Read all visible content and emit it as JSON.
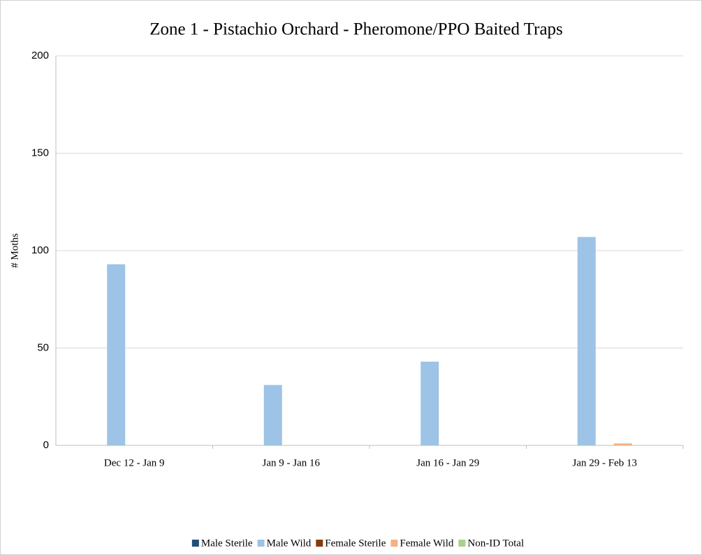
{
  "chart_data": {
    "type": "bar",
    "title": "Zone 1 - Pistachio Orchard - Pheromone/PPO Baited Traps",
    "y_label": "# Moths",
    "categories": [
      "Dec 12 - Jan 9",
      "Jan 9 - Jan 16",
      "Jan 16 - Jan 29",
      "Jan 29 - Feb 13"
    ],
    "series": [
      {
        "name": "Male Sterile",
        "color": "#1f4e79",
        "values": [
          0,
          0,
          0,
          0
        ]
      },
      {
        "name": "Male Wild",
        "color": "#9dc3e6",
        "values": [
          93,
          31,
          43,
          107
        ]
      },
      {
        "name": "Female Sterile",
        "color": "#843c0c",
        "values": [
          0,
          0,
          0,
          0
        ]
      },
      {
        "name": "Female Wild",
        "color": "#f4b183",
        "values": [
          0,
          0,
          0,
          1
        ]
      },
      {
        "name": "Non-ID Total",
        "color": "#a9d18e",
        "values": [
          0,
          0,
          0,
          0
        ]
      }
    ],
    "ylim": [
      0,
      200
    ],
    "yticks": [
      0,
      50,
      100,
      150,
      200
    ],
    "grid": true,
    "legend": "bottom"
  }
}
